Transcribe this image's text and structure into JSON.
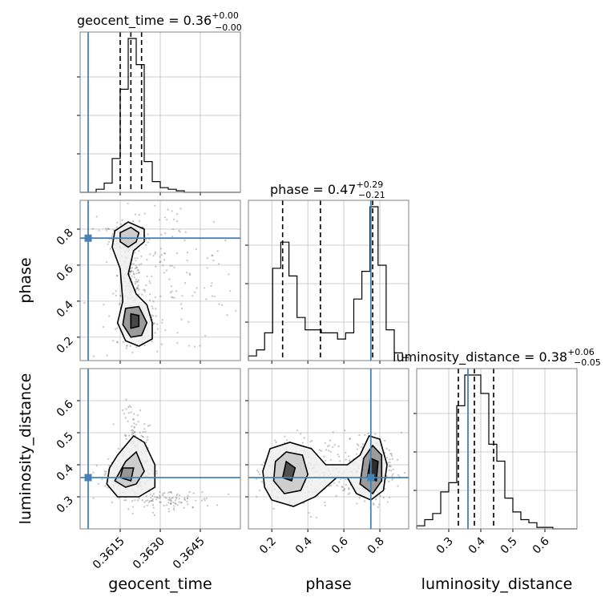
{
  "chart_data": {
    "type": "corner",
    "parameters": [
      "geocent_time",
      "phase",
      "luminosity_distance"
    ],
    "grid": true,
    "colors": {
      "truth": "#4682b4",
      "contour": "#000000",
      "scatter": "#555555"
    },
    "truths": {
      "geocent_time": 0.3603,
      "phase": 0.75,
      "luminosity_distance": 0.36
    },
    "axes": {
      "geocent_time": {
        "range": [
          0.36,
          0.366
        ],
        "ticks": [
          0.3615,
          0.363,
          0.3645
        ],
        "tick_labels": [
          "0.3615",
          "0.3630",
          "0.3645"
        ]
      },
      "phase": {
        "range": [
          0.07,
          0.96
        ],
        "ticks": [
          0.2,
          0.4,
          0.6,
          0.8
        ],
        "tick_labels": [
          "0.2",
          "0.4",
          "0.6",
          "0.8"
        ]
      },
      "luminosity_distance": {
        "range": [
          0.2,
          0.7
        ],
        "ticks": [
          0.3,
          0.4,
          0.5,
          0.6
        ],
        "tick_labels": [
          "0.3",
          "0.4",
          "0.5",
          "0.6"
        ]
      }
    },
    "titles": [
      {
        "param": "geocent_time",
        "text": "geocent_time = 0.36",
        "plus": "+0.00",
        "minus": "−0.00"
      },
      {
        "param": "phase",
        "text": "phase = 0.47",
        "plus": "+0.29",
        "minus": "−0.21"
      },
      {
        "param": "luminosity_distance",
        "text": "luminosity_distance = 0.38",
        "plus": "+0.06",
        "minus": "−0.05"
      }
    ],
    "histograms": {
      "geocent_time": {
        "edges": [
          0.36,
          0.3603,
          0.3606,
          0.3609,
          0.3612,
          0.3615,
          0.3618,
          0.3621,
          0.3624,
          0.3627,
          0.363,
          0.3633,
          0.3636,
          0.3639,
          0.3642,
          0.3645,
          0.3648,
          0.3651,
          0.3654,
          0.3657,
          0.366
        ],
        "counts": [
          0,
          0,
          0.02,
          0.06,
          0.22,
          0.67,
          1.0,
          0.83,
          0.2,
          0.07,
          0.03,
          0.02,
          0.01,
          0,
          0,
          0,
          0,
          0,
          0,
          0
        ],
        "quantiles": [
          0.3615,
          0.3619,
          0.3623
        ]
      },
      "phase": {
        "edges": [
          0.07,
          0.115,
          0.16,
          0.205,
          0.25,
          0.295,
          0.34,
          0.385,
          0.43,
          0.475,
          0.52,
          0.565,
          0.61,
          0.655,
          0.7,
          0.745,
          0.79,
          0.835,
          0.88,
          0.925,
          0.96
        ],
        "counts": [
          0.03,
          0.07,
          0.18,
          0.6,
          0.77,
          0.55,
          0.28,
          0.2,
          0.2,
          0.18,
          0.18,
          0.14,
          0.18,
          0.4,
          0.58,
          1.0,
          0.62,
          0.2,
          0.05,
          0.02
        ],
        "quantiles": [
          0.26,
          0.47,
          0.76
        ]
      },
      "luminosity_distance": {
        "edges": [
          0.2,
          0.225,
          0.25,
          0.275,
          0.3,
          0.325,
          0.35,
          0.375,
          0.4,
          0.425,
          0.45,
          0.475,
          0.5,
          0.525,
          0.55,
          0.575,
          0.6,
          0.625,
          0.65,
          0.675,
          0.7
        ],
        "counts": [
          0.02,
          0.06,
          0.1,
          0.24,
          0.3,
          0.8,
          1.0,
          1.0,
          0.88,
          0.55,
          0.44,
          0.2,
          0.11,
          0.06,
          0.04,
          0.01,
          0.01,
          0,
          0,
          0
        ],
        "quantiles": [
          0.33,
          0.38,
          0.44
        ]
      }
    },
    "pairs": [
      {
        "x": "geocent_time",
        "y": "phase",
        "clusters": [
          {
            "center": [
              0.3618,
              0.75
            ],
            "spread": [
              0.00035,
              0.04
            ],
            "n": 160
          },
          {
            "center": [
              0.3621,
              0.3
            ],
            "spread": [
              0.00035,
              0.07
            ],
            "n": 180
          },
          {
            "center": [
              0.3619,
              0.55
            ],
            "spread": [
              0.00025,
              0.12
            ],
            "n": 120
          },
          {
            "center": [
              0.363,
              0.55
            ],
            "spread": [
              0.0015,
              0.22
            ],
            "n": 170
          }
        ],
        "contours": [
          [
            [
              0.3613,
              0.79
            ],
            [
              0.3618,
              0.84
            ],
            [
              0.3624,
              0.8
            ],
            [
              0.3624,
              0.73
            ],
            [
              0.362,
              0.68
            ],
            [
              0.3618,
              0.55
            ],
            [
              0.3621,
              0.44
            ],
            [
              0.3625,
              0.38
            ],
            [
              0.3627,
              0.28
            ],
            [
              0.3627,
              0.19
            ],
            [
              0.3622,
              0.15
            ],
            [
              0.3617,
              0.18
            ],
            [
              0.3614,
              0.28
            ],
            [
              0.3616,
              0.4
            ],
            [
              0.3615,
              0.58
            ],
            [
              0.3612,
              0.7
            ]
          ],
          [
            [
              0.3615,
              0.78
            ],
            [
              0.3619,
              0.81
            ],
            [
              0.3622,
              0.78
            ],
            [
              0.3621,
              0.73
            ],
            [
              0.3618,
              0.7
            ],
            [
              0.3615,
              0.73
            ]
          ],
          [
            [
              0.3617,
              0.36
            ],
            [
              0.3622,
              0.37
            ],
            [
              0.3625,
              0.28
            ],
            [
              0.3623,
              0.21
            ],
            [
              0.3619,
              0.2
            ],
            [
              0.3616,
              0.27
            ]
          ],
          [
            [
              0.3619,
              0.33
            ],
            [
              0.3622,
              0.32
            ],
            [
              0.3622,
              0.26
            ],
            [
              0.3619,
              0.25
            ]
          ]
        ]
      },
      {
        "x": "geocent_time",
        "y": "luminosity_distance",
        "clusters": [
          {
            "center": [
              0.3618,
              0.37
            ],
            "spread": [
              0.00045,
              0.025
            ],
            "n": 200
          },
          {
            "center": [
              0.3622,
              0.42
            ],
            "spread": [
              0.00025,
              0.05
            ],
            "n": 120
          },
          {
            "center": [
              0.3632,
              0.29
            ],
            "spread": [
              0.0009,
              0.015
            ],
            "n": 110
          },
          {
            "center": [
              0.362,
              0.52
            ],
            "spread": [
              0.0002,
              0.04
            ],
            "n": 40
          }
        ],
        "contours": [
          [
            [
              0.361,
              0.34
            ],
            [
              0.3614,
              0.3
            ],
            [
              0.3622,
              0.3
            ],
            [
              0.3628,
              0.33
            ],
            [
              0.3628,
              0.4
            ],
            [
              0.3624,
              0.47
            ],
            [
              0.362,
              0.49
            ],
            [
              0.3614,
              0.43
            ],
            [
              0.3611,
              0.39
            ]
          ],
          [
            [
              0.3613,
              0.35
            ],
            [
              0.3617,
              0.33
            ],
            [
              0.3621,
              0.34
            ],
            [
              0.3624,
              0.38
            ],
            [
              0.3621,
              0.44
            ],
            [
              0.3617,
              0.41
            ]
          ],
          [
            [
              0.3615,
              0.36
            ],
            [
              0.3619,
              0.35
            ],
            [
              0.362,
              0.39
            ],
            [
              0.3616,
              0.39
            ]
          ]
        ]
      },
      {
        "x": "phase",
        "y": "luminosity_distance",
        "clusters": [
          {
            "center": [
              0.3,
              0.38
            ],
            "spread": [
              0.07,
              0.04
            ],
            "n": 220
          },
          {
            "center": [
              0.76,
              0.38
            ],
            "spread": [
              0.05,
              0.045
            ],
            "n": 220
          },
          {
            "center": [
              0.52,
              0.38
            ],
            "spread": [
              0.2,
              0.06
            ],
            "n": 200
          }
        ],
        "contours": [
          [
            [
              0.16,
              0.33
            ],
            [
              0.2,
              0.29
            ],
            [
              0.32,
              0.27
            ],
            [
              0.44,
              0.3
            ],
            [
              0.56,
              0.36
            ],
            [
              0.62,
              0.36
            ],
            [
              0.67,
              0.31
            ],
            [
              0.75,
              0.29
            ],
            [
              0.82,
              0.32
            ],
            [
              0.84,
              0.4
            ],
            [
              0.8,
              0.48
            ],
            [
              0.74,
              0.49
            ],
            [
              0.69,
              0.43
            ],
            [
              0.62,
              0.4
            ],
            [
              0.5,
              0.4
            ],
            [
              0.42,
              0.45
            ],
            [
              0.3,
              0.47
            ],
            [
              0.19,
              0.45
            ],
            [
              0.15,
              0.38
            ]
          ],
          [
            [
              0.21,
              0.35
            ],
            [
              0.27,
              0.31
            ],
            [
              0.36,
              0.32
            ],
            [
              0.4,
              0.37
            ],
            [
              0.37,
              0.43
            ],
            [
              0.28,
              0.44
            ],
            [
              0.22,
              0.41
            ]
          ],
          [
            [
              0.69,
              0.34
            ],
            [
              0.76,
              0.31
            ],
            [
              0.81,
              0.35
            ],
            [
              0.81,
              0.43
            ],
            [
              0.76,
              0.46
            ],
            [
              0.71,
              0.42
            ]
          ],
          [
            [
              0.26,
              0.36
            ],
            [
              0.31,
              0.35
            ],
            [
              0.33,
              0.39
            ],
            [
              0.28,
              0.41
            ]
          ],
          [
            [
              0.73,
              0.36
            ],
            [
              0.78,
              0.35
            ],
            [
              0.79,
              0.41
            ],
            [
              0.75,
              0.42
            ]
          ]
        ]
      }
    ]
  }
}
